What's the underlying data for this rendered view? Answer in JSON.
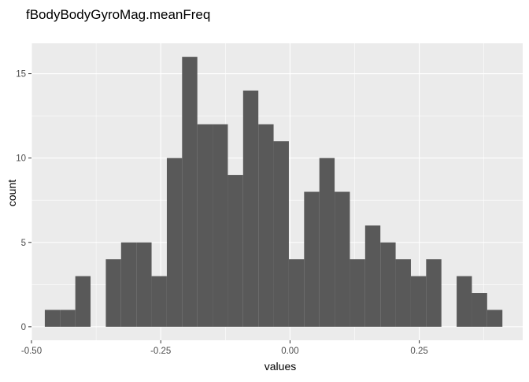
{
  "chart_data": {
    "type": "bar",
    "title": "fBodyBodyGyroMag.meanFreq",
    "xlabel": "values",
    "ylabel": "count",
    "bin_width": 0.0295,
    "x_ticks": [
      -0.5,
      -0.25,
      0.0,
      0.25
    ],
    "x_tick_labels": [
      "-0.50",
      "-0.25",
      "0.00",
      "0.25"
    ],
    "y_ticks": [
      0,
      5,
      10,
      15
    ],
    "y_tick_labels": [
      "0",
      "5",
      "10",
      "15"
    ],
    "xlim": [
      -0.5,
      0.45
    ],
    "ylim": [
      -0.8,
      16.8
    ],
    "grid": true,
    "bins": [
      {
        "x": -0.4595,
        "count": 1
      },
      {
        "x": -0.43,
        "count": 1
      },
      {
        "x": -0.4005,
        "count": 3
      },
      {
        "x": -0.371,
        "count": 0
      },
      {
        "x": -0.3415,
        "count": 4
      },
      {
        "x": -0.312,
        "count": 5
      },
      {
        "x": -0.2825,
        "count": 5
      },
      {
        "x": -0.253,
        "count": 3
      },
      {
        "x": -0.2235,
        "count": 10
      },
      {
        "x": -0.194,
        "count": 16
      },
      {
        "x": -0.1645,
        "count": 12
      },
      {
        "x": -0.135,
        "count": 12
      },
      {
        "x": -0.1055,
        "count": 9
      },
      {
        "x": -0.076,
        "count": 14
      },
      {
        "x": -0.0465,
        "count": 12
      },
      {
        "x": -0.017,
        "count": 11
      },
      {
        "x": 0.0125,
        "count": 4
      },
      {
        "x": 0.042,
        "count": 8
      },
      {
        "x": 0.0715,
        "count": 10
      },
      {
        "x": 0.101,
        "count": 8
      },
      {
        "x": 0.1305,
        "count": 4
      },
      {
        "x": 0.16,
        "count": 6
      },
      {
        "x": 0.1895,
        "count": 5
      },
      {
        "x": 0.219,
        "count": 4
      },
      {
        "x": 0.2485,
        "count": 3
      },
      {
        "x": 0.278,
        "count": 4
      },
      {
        "x": 0.3075,
        "count": 0
      },
      {
        "x": 0.337,
        "count": 3
      },
      {
        "x": 0.3665,
        "count": 2
      },
      {
        "x": 0.396,
        "count": 1
      }
    ]
  },
  "colors": {
    "panel_background": "#ebebeb",
    "bar_fill": "#595959",
    "grid": "#ffffff",
    "page_background": "#ffffff"
  }
}
